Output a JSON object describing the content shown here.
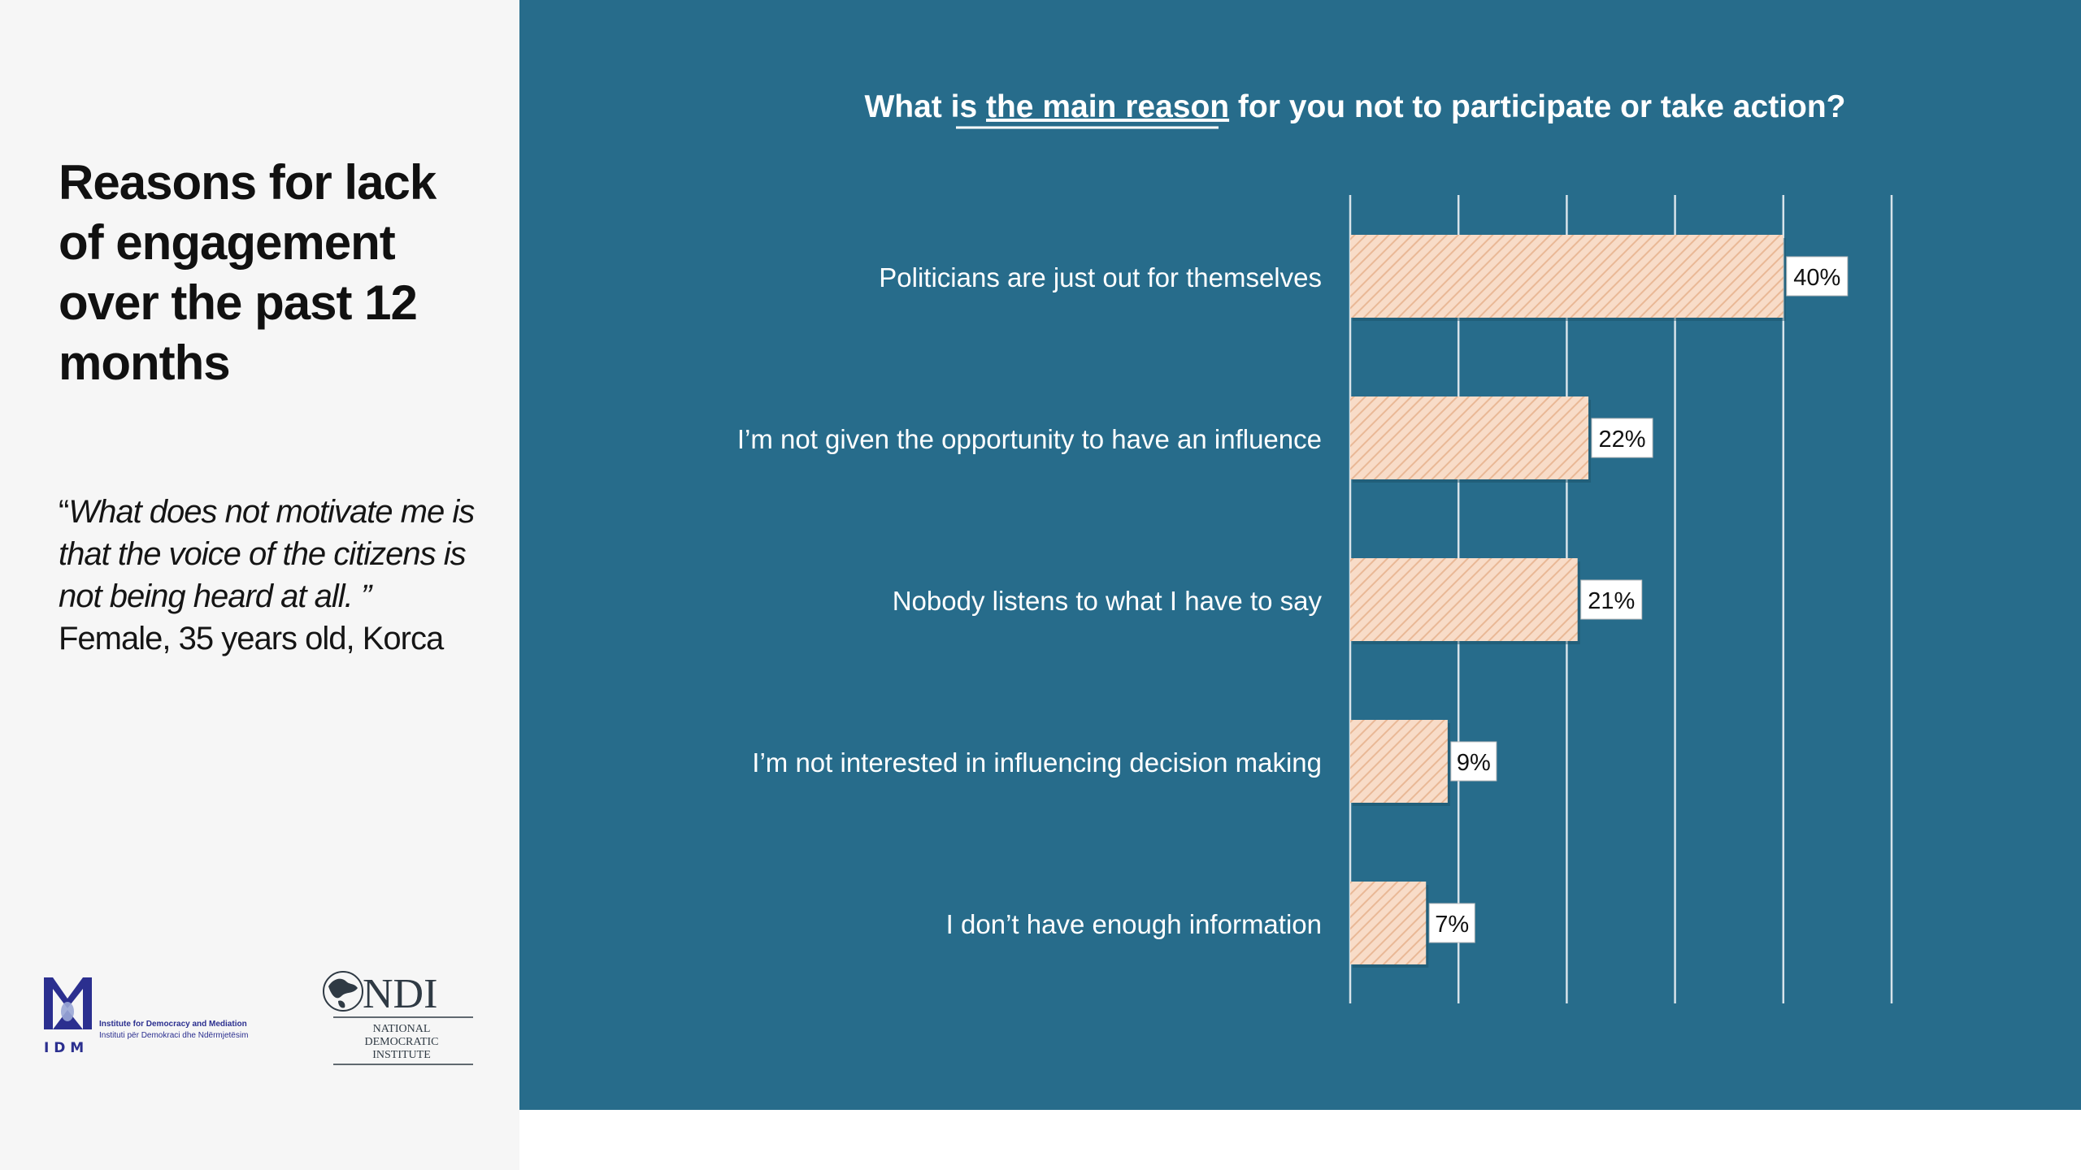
{
  "left": {
    "title": "Reasons for lack of engagement over the past 12 months",
    "quote_open": "“",
    "quote_text": "What does not motivate me is that the voice of the citizens is not being heard at all. ”",
    "quote_attribution": " Female, 35 years old, Korca"
  },
  "logos": {
    "idm": {
      "mark": "I D M",
      "line1": "Institute for Democracy and Mediation",
      "line2": "Instituti për Demokraci dhe Ndërmjetësim"
    },
    "ndi": {
      "mark": "NDI",
      "line1": "NATIONAL",
      "line2": "DEMOCRATIC",
      "line3": "INSTITUTE"
    }
  },
  "chart_data": {
    "type": "bar",
    "orientation": "horizontal",
    "title_parts": [
      "What is ",
      "the main reason",
      " for you not to participate or take  action?"
    ],
    "title_emphasis": "the main reason",
    "categories": [
      "Politicians are just out for themselves",
      "I’m not given the opportunity to have an influence",
      "Nobody listens to what I have to say",
      "I’m not interested in influencing decision making",
      "I don’t have enough information"
    ],
    "values": [
      40,
      22,
      21,
      9,
      7
    ],
    "value_labels": [
      "40%",
      "22%",
      "21%",
      "9%",
      "7%"
    ],
    "xlim": [
      0,
      50
    ],
    "x_gridlines": [
      0,
      10,
      20,
      30,
      40,
      50
    ],
    "grid": true,
    "legend": "none",
    "colors": {
      "panel": "#276c8b",
      "bar_fill": "#f8dcc8",
      "bar_hatch": "#e9b896",
      "gridline": "#d7e3ea",
      "label_box": "#ffffff",
      "text": "#ffffff"
    }
  }
}
